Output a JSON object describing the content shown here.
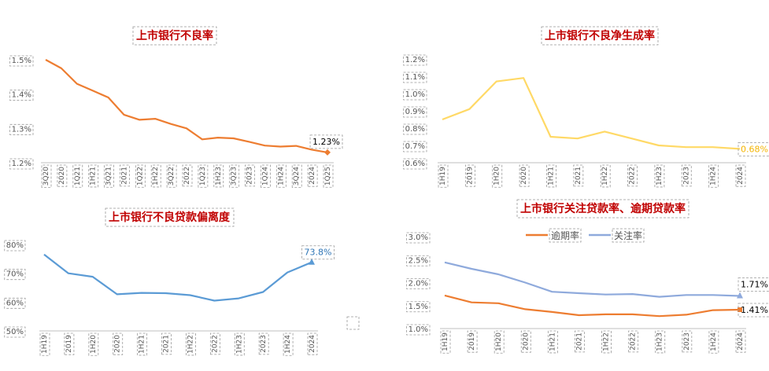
{
  "chart_data": [
    {
      "type": "line",
      "title": "上市银行不良率",
      "categories": [
        "3Q20",
        "2020",
        "1Q21",
        "1H21",
        "3Q21",
        "2021",
        "1Q22",
        "1H22",
        "3Q22",
        "2022",
        "1Q23",
        "1H23",
        "3Q23",
        "2023",
        "1Q24",
        "1H24",
        "3Q24",
        "2024",
        "1Q25"
      ],
      "series": [
        {
          "values": [
            1.5,
            1.475,
            1.43,
            1.41,
            1.39,
            1.34,
            1.325,
            1.328,
            1.313,
            1.3,
            1.268,
            1.273,
            1.271,
            1.261,
            1.25,
            1.247,
            1.249,
            1.238,
            1.23
          ],
          "color": "#ed7d31"
        }
      ],
      "end_label": "1.23%",
      "yticks": [
        "1.2%",
        "1.3%",
        "1.4%",
        "1.5%"
      ],
      "ylim": [
        1.2,
        1.5
      ]
    },
    {
      "type": "line",
      "title": "上市银行不良净生成率",
      "categories": [
        "1H19",
        "2019",
        "1H20",
        "2020",
        "1H21",
        "2021",
        "1H22",
        "2022",
        "1H23",
        "2023",
        "1H24",
        "2024"
      ],
      "series": [
        {
          "values": [
            0.85,
            0.91,
            1.07,
            1.09,
            0.75,
            0.74,
            0.78,
            0.74,
            0.7,
            0.69,
            0.69,
            0.68
          ],
          "color": "#ffd966"
        }
      ],
      "end_label": "0.68%",
      "yticks": [
        "0.6%",
        "0.7%",
        "0.8%",
        "0.9%",
        "1.0%",
        "1.1%",
        "1.2%"
      ],
      "ylim": [
        0.6,
        1.2
      ]
    },
    {
      "type": "line",
      "title": "上市银行不良贷款偏离度",
      "categories": [
        "1H19",
        "2019",
        "1H20",
        "2020",
        "1H21",
        "2021",
        "1H22",
        "2022",
        "1H23",
        "2023",
        "1H24",
        "2024"
      ],
      "series": [
        {
          "values": [
            76.5,
            70.0,
            68.8,
            62.7,
            63.2,
            63.1,
            62.4,
            60.5,
            61.3,
            63.5,
            70.3,
            73.8
          ],
          "color": "#5b9bd5"
        }
      ],
      "end_label": "73.8%",
      "yticks": [
        "50%",
        "60%",
        "70%",
        "80%"
      ],
      "ylim": [
        50,
        80
      ]
    },
    {
      "type": "line",
      "title": "上市银行关注贷款率、逾期贷款率",
      "categories": [
        "1H19",
        "2019",
        "1H20",
        "2020",
        "1H21",
        "2021",
        "1H22",
        "2022",
        "1H23",
        "2023",
        "1H24",
        "2024"
      ],
      "series": [
        {
          "name": "逾期率",
          "values": [
            1.72,
            1.57,
            1.55,
            1.42,
            1.36,
            1.29,
            1.31,
            1.31,
            1.27,
            1.3,
            1.4,
            1.41
          ],
          "color": "#ed7d31"
        },
        {
          "name": "关注率",
          "values": [
            2.44,
            2.3,
            2.18,
            2.0,
            1.8,
            1.77,
            1.74,
            1.75,
            1.69,
            1.73,
            1.73,
            1.71
          ],
          "color": "#8faadc"
        }
      ],
      "end_labels": [
        "1.41%",
        "1.71%"
      ],
      "yticks": [
        "1.0%",
        "1.5%",
        "2.0%",
        "2.5%",
        "3.0%"
      ],
      "ylim": [
        1.0,
        3.0
      ],
      "legend": "top"
    }
  ]
}
